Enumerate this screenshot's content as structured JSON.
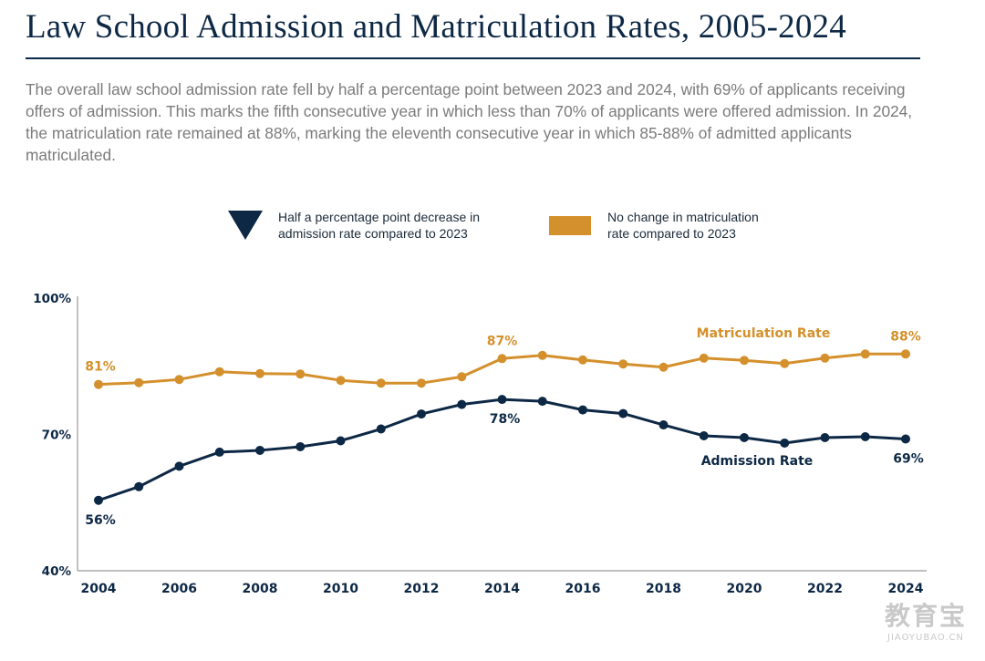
{
  "title": "Law School Admission and Matriculation Rates, 2005-2024",
  "subtitle": "The overall law school admission rate fell by half a percentage point between 2023 and 2024, with 69% of applicants receiving offers of admission. This marks the fifth consecutive year in which less than 70% of applicants were offered admission. In 2024, the matriculation rate remained at 88%, marking the eleventh consecutive year in which 85-88% of admitted applicants matriculated.",
  "legend": {
    "decrease": {
      "line1": "Half a percentage point decrease in",
      "line2": "admission rate compared to 2023",
      "icon": "down-triangle-icon",
      "color": "#0d2845"
    },
    "nochange": {
      "line1": "No change in matriculation",
      "line2": "rate compared to 2023",
      "icon": "rectangle-icon",
      "color": "#d4902c"
    }
  },
  "watermark": {
    "main": "教育宝",
    "sub": "JIAOYUBAO.CN"
  },
  "chart_data": {
    "type": "line",
    "x": [
      2004,
      2005,
      2006,
      2007,
      2008,
      2009,
      2010,
      2011,
      2012,
      2013,
      2014,
      2015,
      2016,
      2017,
      2018,
      2019,
      2020,
      2021,
      2022,
      2023,
      2024
    ],
    "series": [
      {
        "name": "Matriculation Rate",
        "color": "#d4902c",
        "values": [
          81,
          81.4,
          82.1,
          83.8,
          83.4,
          83.3,
          81.9,
          81.3,
          81.3,
          82.7,
          86.7,
          87.4,
          86.4,
          85.5,
          84.8,
          86.8,
          86.3,
          85.6,
          86.8,
          87.7,
          87.7
        ],
        "labels": [
          {
            "x": 2004,
            "text": "81%"
          },
          {
            "x": 2014,
            "text": "87%"
          },
          {
            "x": 2024,
            "text": "88%"
          }
        ]
      },
      {
        "name": "Admission Rate",
        "color": "#0d2845",
        "values": [
          55.5,
          58.5,
          63,
          66.1,
          66.5,
          67.3,
          68.6,
          71.2,
          74.5,
          76.6,
          77.7,
          77.3,
          75.4,
          74.6,
          72.1,
          69.7,
          69.3,
          68.1,
          69.3,
          69.5,
          69
        ]
      }
    ],
    "point_labels": [
      {
        "series": "Admission Rate",
        "x": 2004,
        "text": "56%"
      },
      {
        "series": "Admission Rate",
        "x": 2014,
        "text": "78%"
      },
      {
        "series": "Admission Rate",
        "x": 2024,
        "text": "69%"
      }
    ],
    "ylim": [
      40,
      100
    ],
    "yticks": [
      {
        "value": 40,
        "label": "40%"
      },
      {
        "value": 70,
        "label": "70%"
      },
      {
        "value": 100,
        "label": "100%"
      }
    ],
    "xticks": [
      2004,
      2006,
      2008,
      2010,
      2012,
      2014,
      2016,
      2018,
      2020,
      2022,
      2024
    ],
    "grid": false,
    "xlabel": "",
    "ylabel": ""
  }
}
